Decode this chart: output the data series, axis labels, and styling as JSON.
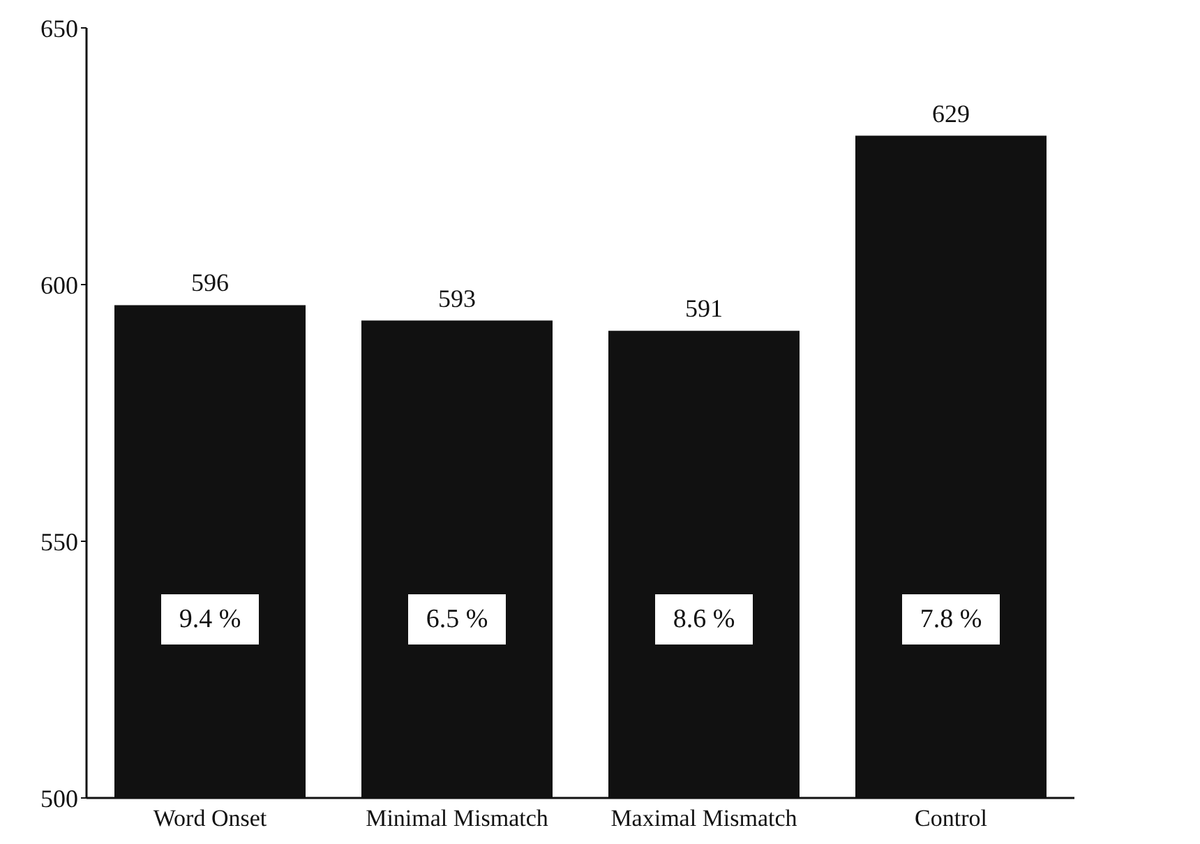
{
  "chart_data": {
    "type": "bar",
    "categories": [
      "Word Onset",
      "Minimal Mismatch",
      "Maximal Mismatch",
      "Control"
    ],
    "values": [
      596,
      593,
      591,
      629
    ],
    "color": "#111111",
    "data_labels": true,
    "ylim": [
      500,
      650
    ],
    "yticks": [
      500,
      550,
      600,
      650
    ],
    "grid": false,
    "annotations": [
      "9.4 %",
      "6.5 %",
      "8.6 %",
      "7.8 %"
    ]
  }
}
